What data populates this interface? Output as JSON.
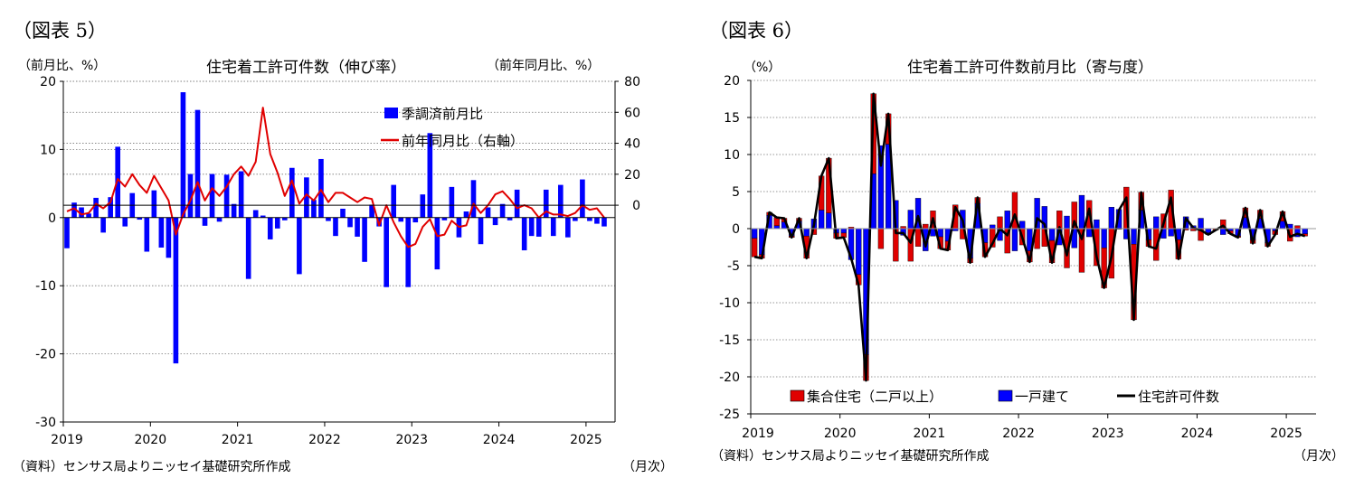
{
  "figure5": {
    "label": "（図表 5）",
    "title": "住宅着工許可件数（伸び率）",
    "left_unit": "（前月比、%）",
    "right_unit": "（前年同月比、%）",
    "source": "（資料）センサス局よりニッセイ基礎研究所作成",
    "month_note": "（月次）"
  },
  "figure6": {
    "label": "（図表 6）",
    "title": "住宅着工許可件数前月比（寄与度）",
    "unit": "（%）",
    "source": "（資料）センサス局よりニッセイ基礎研究所作成",
    "month_note": "（月次）"
  },
  "chart_data": [
    {
      "type": "bar",
      "title": "住宅着工許可件数（伸び率）",
      "x_labels": [
        "2019",
        "2020",
        "2021",
        "2022",
        "2023",
        "2024",
        "2025"
      ],
      "start": "2019-01",
      "ylim_left": [
        -30,
        20
      ],
      "yticks_left": [
        -30,
        -20,
        -10,
        0,
        10,
        20
      ],
      "ylim_right": [
        -140,
        80
      ],
      "yticks_right": [
        0,
        20,
        40,
        60,
        80
      ],
      "grid": true,
      "legend_position": "top-right",
      "series": [
        {
          "name": "季調済前月比",
          "type": "bar",
          "axis": "left",
          "color": "#0000ff",
          "values": [
            -4.5,
            2.2,
            1.5,
            0.6,
            2.9,
            -2.2,
            3.0,
            10.4,
            -1.3,
            3.6,
            -0.3,
            -5.0,
            4.0,
            -4.4,
            -5.9,
            -21.4,
            18.4,
            6.4,
            15.8,
            -1.2,
            6.4,
            -0.6,
            6.3,
            2.0,
            6.8,
            -9.0,
            1.1,
            0.3,
            -3.2,
            -1.6,
            -0.4,
            7.3,
            -8.3,
            5.9,
            2.6,
            8.6,
            -0.5,
            -2.7,
            1.3,
            -1.4,
            -2.8,
            -6.5,
            1.9,
            -1.3,
            -10.2,
            4.8,
            -0.6,
            -10.2,
            -0.7,
            3.4,
            12.4,
            -7.6,
            -0.4,
            4.5,
            -2.9,
            0.9,
            5.5,
            -3.9,
            1.5,
            -1.1,
            2.0,
            -0.4,
            4.1,
            -4.8,
            -2.7,
            -2.8,
            4.1,
            -2.7,
            4.8,
            -2.9,
            -0.5,
            5.6,
            -0.5,
            -0.9,
            -1.3
          ]
        },
        {
          "name": "前年同月比（右軸）",
          "type": "line",
          "axis": "right",
          "color": "#e00000",
          "values": [
            -4,
            -2,
            -6,
            -5,
            1,
            -2,
            2,
            17,
            12,
            20,
            13,
            8,
            19,
            11,
            3,
            -19,
            -6,
            3,
            15,
            3,
            11,
            6,
            12,
            20,
            25,
            19,
            28,
            63,
            33,
            21,
            6,
            16,
            1,
            7,
            3,
            10,
            2,
            8,
            8,
            5,
            2,
            5,
            4,
            -13,
            0,
            -11,
            -20,
            -27,
            -25,
            -14,
            -9,
            -20,
            -19,
            -10,
            -14,
            -13,
            1,
            -5,
            0,
            7,
            9,
            4,
            -2,
            0,
            -2,
            -8,
            -4,
            -6,
            -6,
            -7,
            -5,
            0,
            -3,
            -2,
            -8
          ]
        }
      ]
    },
    {
      "type": "bar",
      "title": "住宅着工許可件数前月比（寄与度）",
      "x_labels": [
        "2019",
        "2020",
        "2021",
        "2022",
        "2023",
        "2024",
        "2025"
      ],
      "start": "2019-01",
      "ylim": [
        -25,
        20
      ],
      "yticks": [
        -25,
        -20,
        -15,
        -10,
        -5,
        0,
        5,
        10,
        15,
        20
      ],
      "grid": true,
      "stacked": true,
      "legend_position": "bottom",
      "series": [
        {
          "name": "集合住宅（二戸以上）",
          "type": "bar",
          "color": "#e00000",
          "values": [
            -2.5,
            -0.5,
            0.4,
            1.1,
            0.5,
            -0.2,
            0.4,
            -3.0,
            -0.8,
            4.6,
            7.4,
            -0.7,
            -0.6,
            0.2,
            -1.4,
            -3.5,
            10.8,
            -2.7,
            4.1,
            -4.4,
            0.3,
            -4.4,
            -2.4,
            0.6,
            2.4,
            -1.6,
            -1.2,
            3.2,
            -1.4,
            -0.6,
            0.8,
            -1.9,
            -2.5,
            1.6,
            -3.3,
            4.9,
            -2.2,
            -1.5,
            -2.7,
            -2.4,
            -3.0,
            2.4,
            -5.3,
            3.6,
            -5.9,
            3.8,
            -5.0,
            -5.4,
            -6.7,
            -0.1,
            5.6,
            -10.2,
            2.4,
            -0.9,
            -4.3,
            2.0,
            5.2,
            -2.6,
            -0.2,
            -0.3,
            -1.6,
            -0.2,
            -0.2,
            1.2,
            -0.4,
            -0.2,
            1.3,
            -0.5,
            1.1,
            -0.5,
            -0.5,
            1.3,
            -1.7,
            0.4,
            -0.3
          ]
        },
        {
          "name": "一戸建て",
          "type": "bar",
          "color": "#0000ff",
          "values": [
            -1.3,
            -3.5,
            1.8,
            0.4,
            0.9,
            -1.0,
            1.0,
            -1.0,
            1.3,
            2.5,
            2.1,
            -0.6,
            -0.6,
            -4.2,
            -6.2,
            -17.0,
            7.4,
            11.2,
            11.4,
            3.8,
            -0.9,
            2.5,
            4.1,
            -3.0,
            -1.0,
            -1.1,
            -1.7,
            -0.3,
            2.5,
            -4.0,
            3.4,
            -1.9,
            0.5,
            -1.6,
            2.4,
            -3.0,
            1.0,
            -3.0,
            4.1,
            3.0,
            -1.6,
            -2.2,
            1.7,
            -2.6,
            4.5,
            -1.1,
            1.2,
            -2.6,
            2.9,
            2.6,
            -1.4,
            -2.1,
            2.5,
            -1.5,
            1.6,
            -1.3,
            -1.0,
            -1.5,
            1.6,
            0.4,
            1.4,
            -0.6,
            0.0,
            -0.8,
            -0.3,
            -1.0,
            1.5,
            -1.5,
            1.4,
            -1.9,
            -0.3,
            1.0,
            0.6,
            -1.1,
            -0.7
          ]
        },
        {
          "name": "住宅許可件数",
          "type": "line",
          "color": "#000000",
          "values": [
            -3.8,
            -4.0,
            2.2,
            1.5,
            1.4,
            -1.2,
            1.4,
            -4.0,
            0.5,
            7.1,
            9.5,
            -1.3,
            -1.2,
            -4.0,
            -7.6,
            -20.5,
            18.2,
            8.5,
            15.5,
            -0.6,
            -0.6,
            -1.9,
            1.7,
            -2.4,
            1.4,
            -2.7,
            -2.9,
            2.9,
            1.1,
            -4.6,
            4.2,
            -3.8,
            -2.0,
            0.0,
            -0.9,
            1.9,
            -1.2,
            -4.5,
            1.4,
            0.6,
            -4.6,
            0.2,
            -3.6,
            1.0,
            -1.4,
            2.7,
            -3.8,
            -8.0,
            -3.8,
            2.5,
            4.2,
            -12.3,
            4.9,
            -2.4,
            -2.7,
            0.7,
            4.2,
            -4.1,
            1.4,
            0.1,
            -0.2,
            -0.8,
            -0.2,
            0.4,
            -0.7,
            -1.2,
            2.8,
            -2.0,
            2.5,
            -2.4,
            -0.8,
            2.3,
            -1.1,
            -0.7,
            -1.0
          ]
        }
      ]
    }
  ]
}
